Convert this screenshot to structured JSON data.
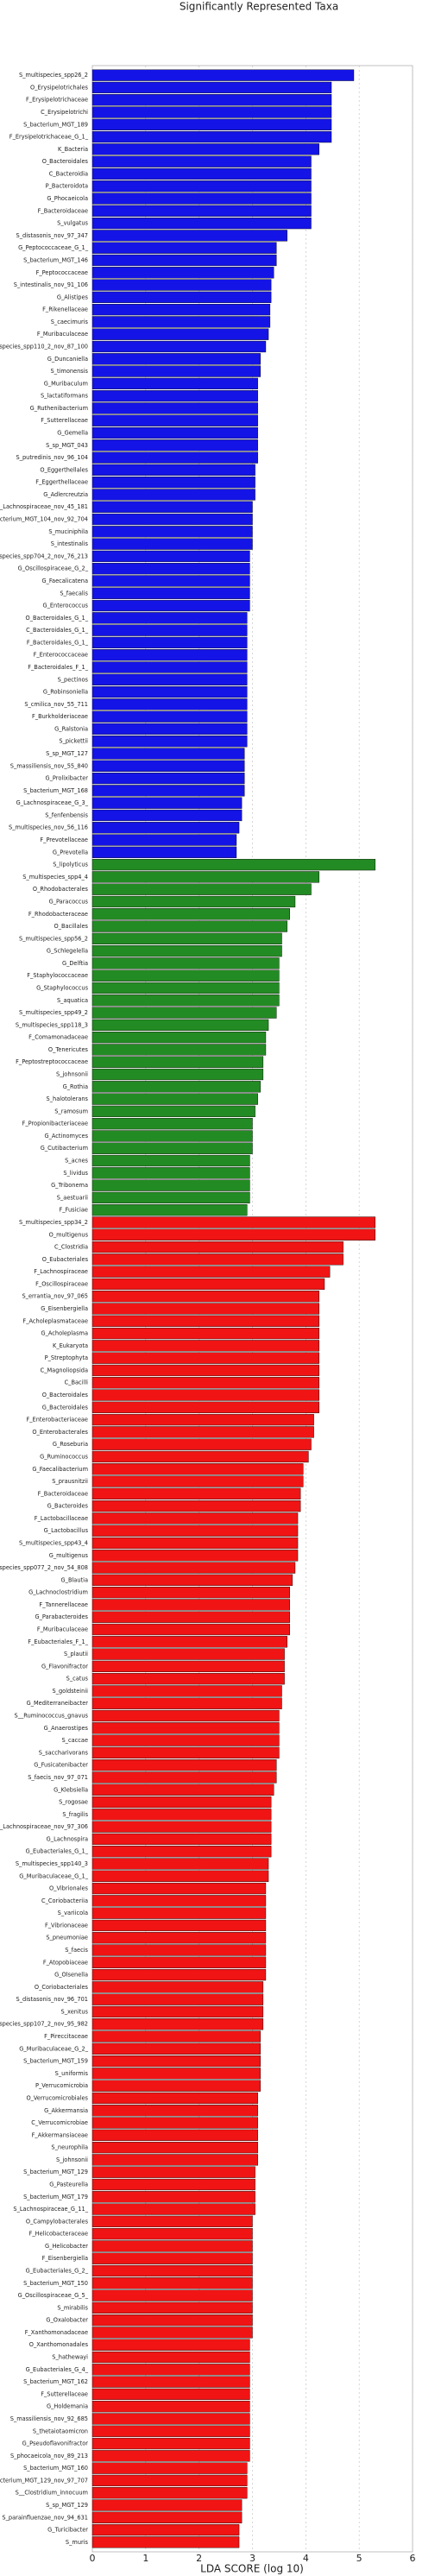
{
  "chart_data": {
    "type": "barh",
    "title": "Significantly Represented Taxa",
    "xlabel": "LDA SCORE (log 10)",
    "xlim": [
      0,
      6
    ],
    "xticks": [
      0,
      1,
      2,
      3,
      4,
      5,
      6
    ],
    "grid": true,
    "groups": [
      {
        "color": "#1414e6",
        "categories": [
          "S_multispecies_spp26_2",
          "O_Erysipelotrichales",
          "F_Erysipelotrichaceae",
          "C_Erysipelotrichi",
          "S_bacterium_MGT_189",
          "F_Erysipelotrichaceae_G_1_",
          "K_Bacteria",
          "O_Bacteroidales",
          "C_Bacteroidia",
          "P_Bacteroidota",
          "G_Phocaeicola",
          "F_Bacteroidaceae",
          "S_vulgatus",
          "S_distasonis_nov_97_347",
          "G_Peptococcaceae_G_1_",
          "S_bacterium_MGT_146",
          "F_Peptococcaceae",
          "S_intestinalis_nov_91_106",
          "G_Alistipes",
          "F_Rikenellaceae",
          "S_caecimuris",
          "F_Muribaculaceae",
          "S_multispecies_spp110_2_nov_87_100",
          "G_Duncaniella",
          "S_timonensis",
          "G_Muribaculum",
          "S_lactatiformans",
          "G_Ruthenibacterium",
          "F_Sutterellaceae",
          "G_Gemella",
          "S_sp_MGT_043",
          "S_putredinis_nov_96_104",
          "O_Eggerthellales",
          "F_Eggerthellaceae",
          "G_Adlercreutzia",
          "S_Lachnospiraceae_nov_45_181",
          "S_bacterium_MGT_104_nov_92_704",
          "S_muciniphila",
          "S_intestinalis",
          "S_multispecies_spp704_2_nov_76_213",
          "G_Oscillospiraceae_G_2_",
          "G_Faecalicatena",
          "S_faecalis",
          "G_Enterococcus",
          "O_Bacteroidales_G_1_",
          "C_Bacteroidales_G_1_",
          "F_Bacteroidales_G_1_",
          "F_Enterococcaceae",
          "F_Bacteroidales_F_1_",
          "S_pectinos",
          "G_Robinsoniella",
          "S_cmilica_nov_55_711",
          "F_Burkholderiaceae",
          "G_Ralstonia",
          "S_pickettii",
          "S_sp_MGT_127",
          "S_massiliensis_nov_55_840",
          "G_Prolixibacter",
          "S_bacterium_MGT_168",
          "G_Lachnospiraceae_G_3_",
          "S_fenfenbensis",
          "S_multispecies_nov_56_116",
          "F_Prevotellaceae",
          "G_Prevotella"
        ],
        "values": [
          4.9,
          4.48,
          4.48,
          4.48,
          4.48,
          4.48,
          4.25,
          4.1,
          4.1,
          4.1,
          4.1,
          4.1,
          4.1,
          3.65,
          3.45,
          3.45,
          3.4,
          3.35,
          3.35,
          3.33,
          3.33,
          3.3,
          3.25,
          3.15,
          3.15,
          3.1,
          3.1,
          3.1,
          3.1,
          3.1,
          3.1,
          3.1,
          3.05,
          3.05,
          3.05,
          3.0,
          3.0,
          3.0,
          3.0,
          2.95,
          2.95,
          2.95,
          2.95,
          2.95,
          2.9,
          2.9,
          2.9,
          2.9,
          2.9,
          2.9,
          2.9,
          2.9,
          2.9,
          2.9,
          2.9,
          2.85,
          2.85,
          2.85,
          2.85,
          2.8,
          2.8,
          2.75,
          2.7,
          2.7
        ]
      },
      {
        "color": "#238b23",
        "categories": [
          "S_lipolyticus",
          "S_multispecies_spp4_4",
          "O_Rhodobacterales",
          "G_Paracoccus",
          "F_Rhodobacteraceae",
          "O_Bacillales",
          "S_multispecies_spp56_2",
          "G_Schlegelella",
          "G_Delftia",
          "F_Staphylococcaceae",
          "G_Staphylococcus",
          "S_aquatica",
          "S_multispecies_spp49_2",
          "S_multispecies_spp118_3",
          "F_Comamonadaceae",
          "O_Tenericutes",
          "F_Peptostreptococcaceae",
          "S_johnsonii",
          "G_Rothia",
          "S_halotolerans",
          "S_ramosum",
          "F_Propionibacteriaceae",
          "G_Actinomyces",
          "G_Cutibacterium",
          "S_acnes",
          "S_lividus",
          "G_Tribonema",
          "S_aestuarii",
          "F_Fusiciae"
        ],
        "values": [
          5.3,
          4.25,
          4.1,
          3.8,
          3.7,
          3.65,
          3.55,
          3.55,
          3.5,
          3.5,
          3.5,
          3.5,
          3.45,
          3.3,
          3.25,
          3.25,
          3.2,
          3.2,
          3.15,
          3.1,
          3.05,
          3.0,
          3.0,
          3.0,
          2.95,
          2.95,
          2.95,
          2.95,
          2.9
        ]
      },
      {
        "color": "#f01414",
        "categories": [
          "S_multispecies_spp34_2",
          "O_multigenus",
          "C_Clostridia",
          "O_Eubacteriales",
          "F_Lachnospiraceae",
          "F_Oscillospiraceae",
          "S_errantia_nov_97_065",
          "G_Eisenbergiella",
          "F_Acholeplasmataceae",
          "G_Acholeplasma",
          "K_Eukaryota",
          "P_Streptophyta",
          "C_Magnoliopsida",
          "C_Bacilli",
          "O_Bacteroidales",
          "G_Bacteroidales",
          "F_Enterobacteriaceae",
          "O_Enterobacterales",
          "G_Roseburia",
          "G_Ruminococcus",
          "G_Faecalibacterium",
          "S_prausnitzii",
          "F_Bacteroidaceae",
          "G_Bacteroides",
          "F_Lactobacillaceae",
          "G_Lactobacillus",
          "S_multispecies_spp43_4",
          "G_multigenus",
          "S_multispecies_spp077_2_nov_54_808",
          "G_Blautia",
          "G_Lachnoclostridium",
          "F_Tannerellaceae",
          "G_Parabacteroides",
          "F_Muribaculaceae",
          "F_Eubacteriales_F_1_",
          "S_plautii",
          "G_Flavonifractor",
          "S_catus",
          "S_goldsteinii",
          "G_Mediterraneibacter",
          "S__Ruminococcus_gnavus",
          "G_Anaerostipes",
          "S_caccae",
          "S_saccharivorans",
          "G_Fusicatenibacter",
          "S_faecis_nov_97_071",
          "G_Klebsiella",
          "S_rogosae",
          "S_fragilis",
          "S_Lachnospiraceae_nov_97_306",
          "G_Lachnospira",
          "G_Eubacteriales_G_1_",
          "S_multispecies_spp140_3",
          "G_Muribaculaceae_G_1_",
          "O_Vibrionales",
          "C_Coriobacteriia",
          "S_variicola",
          "F_Vibrionaceae",
          "S_pneumoniae",
          "S_faecis",
          "F_Atopobiaceae",
          "G_Olsenella",
          "O_Coriobacteriales",
          "S_distasonis_nov_96_701",
          "S_xenitus",
          "S_multispecies_spp107_2_nov_95_982",
          "F_Pireccitaceae",
          "G_Muribaculaceae_G_2_",
          "S_bacterium_MGT_159",
          "S_uniformis",
          "P_Verrucomicrobia",
          "O_Verrucomicrobiales",
          "G_Akkermansia",
          "C_Verrucomicrobiae",
          "F_Akkermansiaceae",
          "S_neurophila",
          "S_johnsonii",
          "S_bacterium_MGT_129",
          "G_Pasteurella",
          "S_bacterium_MGT_179",
          "S_Lachnospiraceae_G_11_",
          "O_Campylobacterales",
          "F_Helicobacteraceae",
          "G_Helicobacter",
          "F_Eisenbergiella",
          "G_Eubacteriales_G_2_",
          "S_bacterium_MGT_150",
          "G_Oscillospiraceae_G_5_",
          "S_mirabilis",
          "G_Oxalobacter",
          "F_Xanthomonadaceae",
          "O_Xanthomonadales",
          "S_hathewayi",
          "G_Eubacteriales_G_4_",
          "S_bacterium_MGT_162",
          "F_Sutterellaceae",
          "G_Holdemania",
          "S_massiliensis_nov_92_685",
          "S_thetaiotaomicron",
          "G_Pseudoflavonifractor",
          "S_phocaeicola_nov_89_213",
          "S_bacterium_MGT_160",
          "S_bacterium_MGT_129_nov_97_707",
          "S__Clostridium_innocuum",
          "S_sp_MGT_129",
          "S_parainfluenzae_nov_94_631",
          "G_Turicibacter",
          "S_muris"
        ],
        "values": [
          5.3,
          5.3,
          4.7,
          4.7,
          4.45,
          4.35,
          4.25,
          4.25,
          4.25,
          4.25,
          4.25,
          4.25,
          4.25,
          4.25,
          4.25,
          4.25,
          4.15,
          4.15,
          4.1,
          4.05,
          3.95,
          3.95,
          3.9,
          3.9,
          3.85,
          3.85,
          3.85,
          3.85,
          3.8,
          3.75,
          3.7,
          3.7,
          3.7,
          3.7,
          3.65,
          3.6,
          3.6,
          3.6,
          3.55,
          3.55,
          3.5,
          3.5,
          3.5,
          3.5,
          3.45,
          3.45,
          3.4,
          3.35,
          3.35,
          3.35,
          3.35,
          3.35,
          3.3,
          3.3,
          3.25,
          3.25,
          3.25,
          3.25,
          3.25,
          3.25,
          3.25,
          3.25,
          3.2,
          3.2,
          3.2,
          3.2,
          3.15,
          3.15,
          3.15,
          3.15,
          3.15,
          3.1,
          3.1,
          3.1,
          3.1,
          3.1,
          3.1,
          3.05,
          3.05,
          3.05,
          3.05,
          3.0,
          3.0,
          3.0,
          3.0,
          3.0,
          3.0,
          3.0,
          3.0,
          3.0,
          3.0,
          2.95,
          2.95,
          2.95,
          2.95,
          2.95,
          2.95,
          2.95,
          2.95,
          2.95,
          2.95,
          2.9,
          2.9,
          2.9,
          2.8,
          2.8,
          2.75,
          2.75
        ]
      }
    ]
  }
}
